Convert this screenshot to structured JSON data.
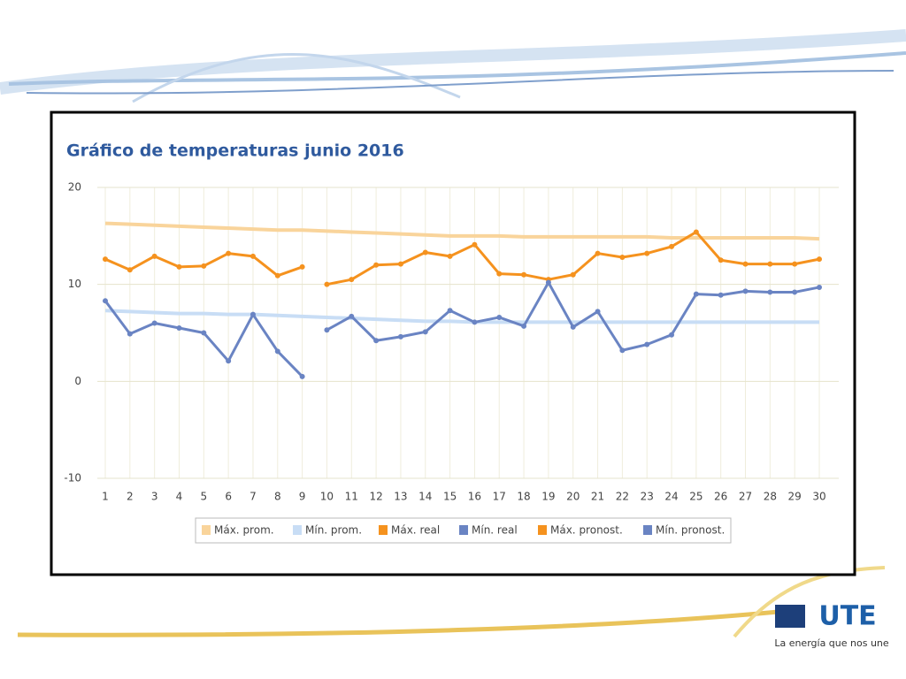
{
  "chart_data": {
    "type": "line",
    "title": "Gráfico de temperaturas junio 2016",
    "categories": [
      "1",
      "2",
      "3",
      "4",
      "5",
      "6",
      "7",
      "8",
      "9",
      "10",
      "11",
      "12",
      "13",
      "14",
      "15",
      "16",
      "17",
      "18",
      "19",
      "20",
      "21",
      "22",
      "23",
      "24",
      "25",
      "26",
      "27",
      "28",
      "29",
      "30"
    ],
    "ylim": [
      -10,
      20
    ],
    "yticks": [
      -10,
      0,
      10,
      20
    ],
    "grid": true,
    "legend": "bottom",
    "series": [
      {
        "name": "Máx. prom.",
        "color": "#f9d49b",
        "markers": false,
        "values": [
          16.3,
          16.2,
          16.1,
          16.0,
          15.9,
          15.8,
          15.7,
          15.6,
          15.6,
          15.5,
          15.4,
          15.3,
          15.2,
          15.1,
          15.0,
          15.0,
          15.0,
          14.9,
          14.9,
          14.9,
          14.9,
          14.9,
          14.9,
          14.8,
          14.8,
          14.8,
          14.8,
          14.8,
          14.8,
          14.7
        ]
      },
      {
        "name": "Mín. prom.",
        "color": "#c8ddf5",
        "markers": false,
        "values": [
          7.3,
          7.2,
          7.1,
          7.0,
          7.0,
          6.9,
          6.9,
          6.8,
          6.7,
          6.6,
          6.5,
          6.4,
          6.3,
          6.2,
          6.2,
          6.1,
          6.1,
          6.1,
          6.1,
          6.1,
          6.1,
          6.1,
          6.1,
          6.1,
          6.1,
          6.1,
          6.1,
          6.1,
          6.1,
          6.1
        ]
      },
      {
        "name": "Máx. real",
        "color": "#f5921e",
        "markers": true,
        "values": [
          12.6,
          11.5,
          12.9,
          11.8,
          11.9,
          13.2,
          12.9,
          10.9,
          11.8,
          null,
          null,
          null,
          null,
          null,
          null,
          null,
          null,
          null,
          null,
          null,
          null,
          null,
          null,
          null,
          null,
          null,
          null,
          null,
          null,
          null
        ]
      },
      {
        "name": "Mín. real",
        "color": "#6a84c3",
        "markers": true,
        "values": [
          8.3,
          4.9,
          6.0,
          5.5,
          5.0,
          2.1,
          6.9,
          3.1,
          0.5,
          null,
          null,
          null,
          null,
          null,
          null,
          null,
          null,
          null,
          null,
          null,
          null,
          null,
          null,
          null,
          null,
          null,
          null,
          null,
          null,
          null
        ]
      },
      {
        "name": "Máx. pronost.",
        "color": "#f5921e",
        "markers": true,
        "values": [
          null,
          null,
          null,
          null,
          null,
          null,
          null,
          null,
          null,
          10.0,
          10.5,
          12.0,
          12.1,
          13.3,
          12.9,
          14.1,
          11.1,
          11.0,
          10.5,
          11.0,
          13.2,
          12.8,
          13.2,
          13.9,
          15.4,
          12.5,
          12.1,
          12.1,
          12.1,
          12.6
        ]
      },
      {
        "name": "Mín. pronost.",
        "color": "#6a84c3",
        "markers": true,
        "values": [
          null,
          null,
          null,
          null,
          null,
          null,
          null,
          null,
          null,
          5.3,
          6.7,
          4.2,
          4.6,
          5.1,
          7.3,
          6.1,
          6.6,
          5.7,
          10.2,
          5.6,
          7.2,
          3.2,
          3.8,
          4.8,
          9.0,
          8.9,
          9.3,
          9.2,
          9.2,
          9.7
        ]
      }
    ]
  },
  "logo": {
    "name": "UTE",
    "tagline": "La energía que nos une"
  }
}
